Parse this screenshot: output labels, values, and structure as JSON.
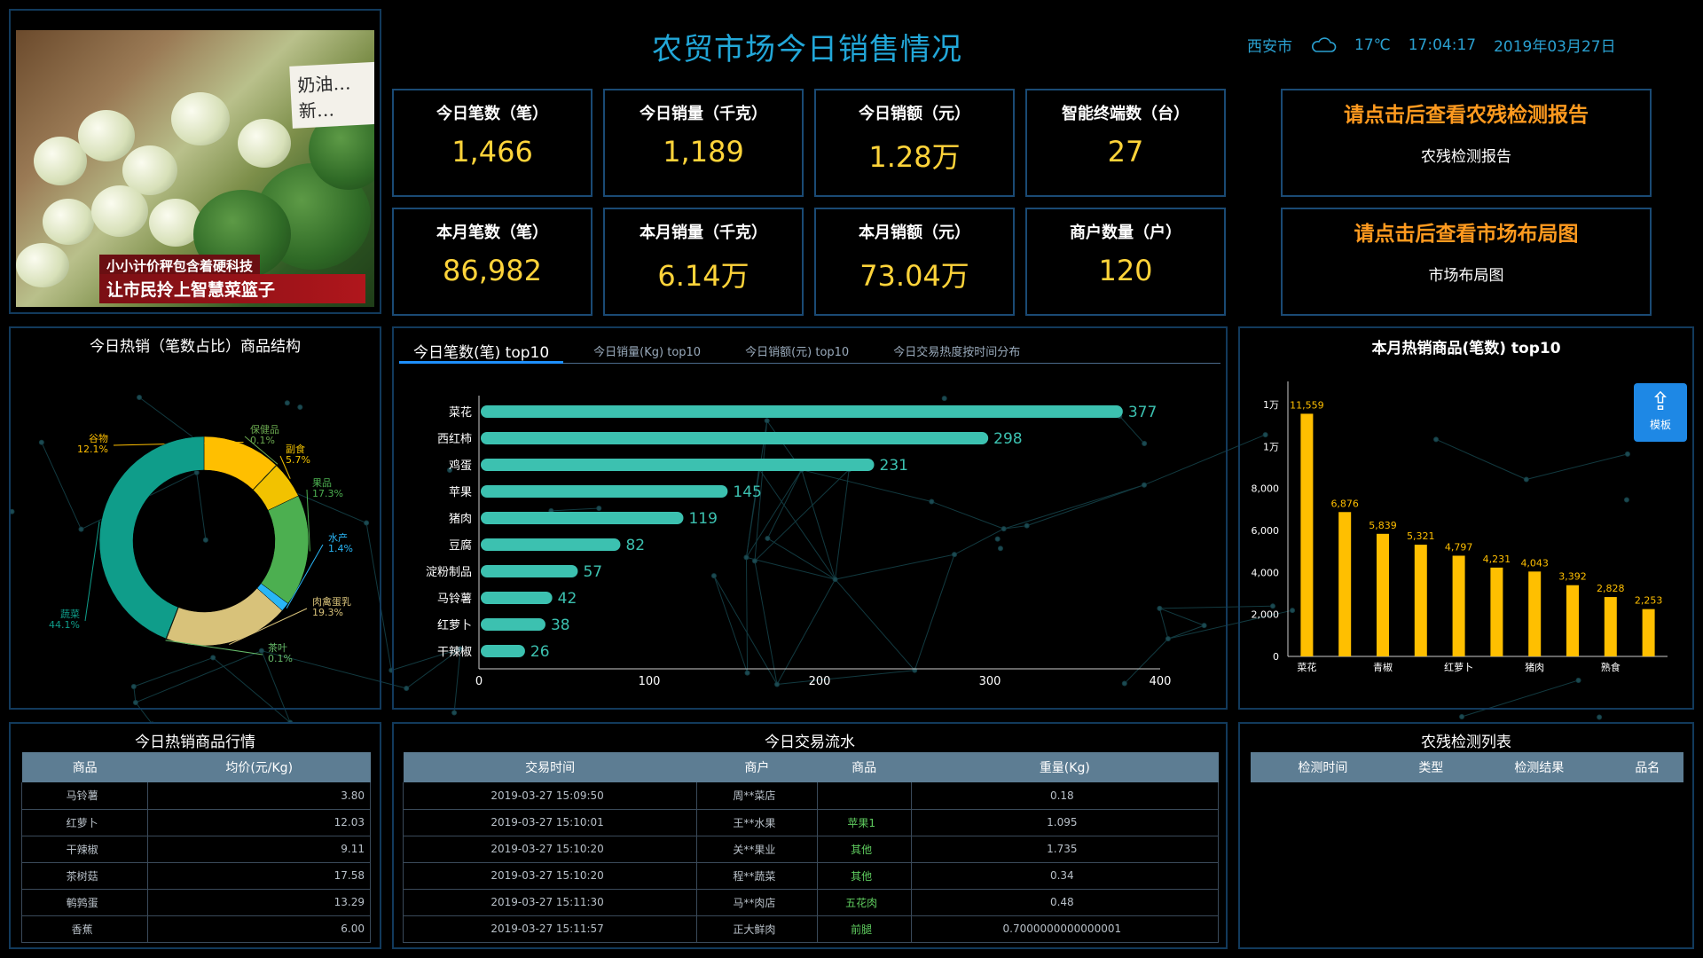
{
  "photo": {
    "sign_text": "奶油…\n新…",
    "caption1": "小小计价秤包含着硬科技",
    "caption2": "让市民拎上智慧菜篮子"
  },
  "header": {
    "title": "农贸市场今日销售情况",
    "city": "西安市",
    "weather_icon": "cloud-icon",
    "temperature": "17℃",
    "time": "17:04:17",
    "date": "2019年03月27日"
  },
  "kpis": [
    {
      "label": "今日笔数（笔）",
      "value": "1,466"
    },
    {
      "label": "今日销量（千克）",
      "value": "1,189"
    },
    {
      "label": "今日销额（元）",
      "value": "1.28万"
    },
    {
      "label": "智能终端数（台）",
      "value": "27"
    },
    {
      "label": "本月笔数（笔）",
      "value": "86,982"
    },
    {
      "label": "本月销量（千克）",
      "value": "6.14万"
    },
    {
      "label": "本月销额（元）",
      "value": "73.04万"
    },
    {
      "label": "商户数量（户）",
      "value": "120"
    }
  ],
  "links": [
    {
      "title": "请点击后查看农残检测报告",
      "subtitle": "农残检测报告"
    },
    {
      "title": "请点击后查看市场布局图",
      "subtitle": "市场布局图"
    }
  ],
  "colors": {
    "accent": "#22a7d8",
    "kpi_value": "#ffd43a",
    "link": "#ff9a1f",
    "bar_teal": "#3cc1b0",
    "bar_yellow": "#ffbf00"
  },
  "donut_panel": {
    "title": "今日热销（笔数占比）商品结构"
  },
  "top10_panel": {
    "tabs": [
      "今日笔数(笔) top10",
      "今日销量(Kg) top10",
      "今日销额(元) top10",
      "今日交易热度按时间分布"
    ]
  },
  "month_panel": {
    "title": "本月热销商品(笔数) top10",
    "upload_label": "模板",
    "upload_icon": "upload-icon"
  },
  "chart_data": [
    {
      "type": "pie",
      "title": "今日热销（笔数占比）商品结构",
      "donut": true,
      "slices": [
        {
          "name": "谷物",
          "value": 12.1,
          "label": "12.1%",
          "color": "#ffbf00"
        },
        {
          "name": "保健品",
          "value": 0.1,
          "label": "0.1%",
          "color": "#6aa84f"
        },
        {
          "name": "副食",
          "value": 5.7,
          "label": "5.7%",
          "color": "#f2c200"
        },
        {
          "name": "果品",
          "value": 17.3,
          "label": "17.3%",
          "color": "#4caf50"
        },
        {
          "name": "水产",
          "value": 1.4,
          "label": "1.4%",
          "color": "#29b6f6"
        },
        {
          "name": "肉禽蛋乳",
          "value": 19.3,
          "label": "19.3%",
          "color": "#d8c27a"
        },
        {
          "name": "茶叶",
          "value": 0.1,
          "label": "0.1%",
          "color": "#66bb6a"
        },
        {
          "name": "蔬菜",
          "value": 44.1,
          "label": "44.1%",
          "color": "#0f9d8a"
        }
      ]
    },
    {
      "type": "bar",
      "orientation": "horizontal",
      "categories": [
        "菜花",
        "西红柿",
        "鸡蛋",
        "苹果",
        "猪肉",
        "豆腐",
        "淀粉制品",
        "马铃薯",
        "红萝卜",
        "干辣椒"
      ],
      "values": [
        377,
        298,
        231,
        145,
        119,
        82,
        57,
        42,
        38,
        26
      ],
      "xlim": [
        0,
        400
      ],
      "xticks": [
        0,
        100,
        200,
        300,
        400
      ]
    },
    {
      "type": "bar",
      "title": "本月热销商品(笔数) top10",
      "categories": [
        "菜花",
        "",
        "青椒",
        "",
        "红萝卜",
        "",
        "猪肉",
        "",
        "熟食",
        ""
      ],
      "values": [
        11559,
        6876,
        5839,
        5321,
        4797,
        4231,
        4043,
        3392,
        2828,
        2253
      ],
      "value_labels": [
        "11,559",
        "6,876",
        "5,839",
        "5,321",
        "4,797",
        "4,231",
        "4,043",
        "3,392",
        "2,828",
        "2,253"
      ],
      "ylim": [
        0,
        12000
      ],
      "yticks": [
        0,
        2000,
        4000,
        6000,
        8000,
        10000,
        12000
      ],
      "ytick_labels": [
        "0",
        "2,000",
        "4,000",
        "6,000",
        "8,000",
        "1万",
        "1万"
      ]
    }
  ],
  "hot_table": {
    "title": "今日热销商品行情",
    "columns": [
      "商品",
      "均价(元/Kg)"
    ],
    "rows": [
      [
        "马铃薯",
        "3.80"
      ],
      [
        "红萝卜",
        "12.03"
      ],
      [
        "干辣椒",
        "9.11"
      ],
      [
        "茶树菇",
        "17.58"
      ],
      [
        "鹌鹑蛋",
        "13.29"
      ],
      [
        "香蕉",
        "6.00"
      ]
    ]
  },
  "flow_table": {
    "title": "今日交易流水",
    "columns": [
      "交易时间",
      "商户",
      "商品",
      "重量(Kg)"
    ],
    "rows": [
      [
        "2019-03-27 15:09:50",
        "周**菜店",
        "",
        "0.18"
      ],
      [
        "2019-03-27 15:10:01",
        "王**水果",
        "苹果1",
        "1.095"
      ],
      [
        "2019-03-27 15:10:20",
        "关**果业",
        "其他",
        "1.735"
      ],
      [
        "2019-03-27 15:10:20",
        "程**蔬菜",
        "其他",
        "0.34"
      ],
      [
        "2019-03-27 15:11:30",
        "马**肉店",
        "五花肉",
        "0.48"
      ],
      [
        "2019-03-27 15:11:57",
        "正大鲜肉",
        "前腿",
        "0.7000000000000001"
      ]
    ]
  },
  "check_table": {
    "title": "农残检测列表",
    "columns": [
      "检测时间",
      "类型",
      "检测结果",
      "品名"
    ]
  }
}
